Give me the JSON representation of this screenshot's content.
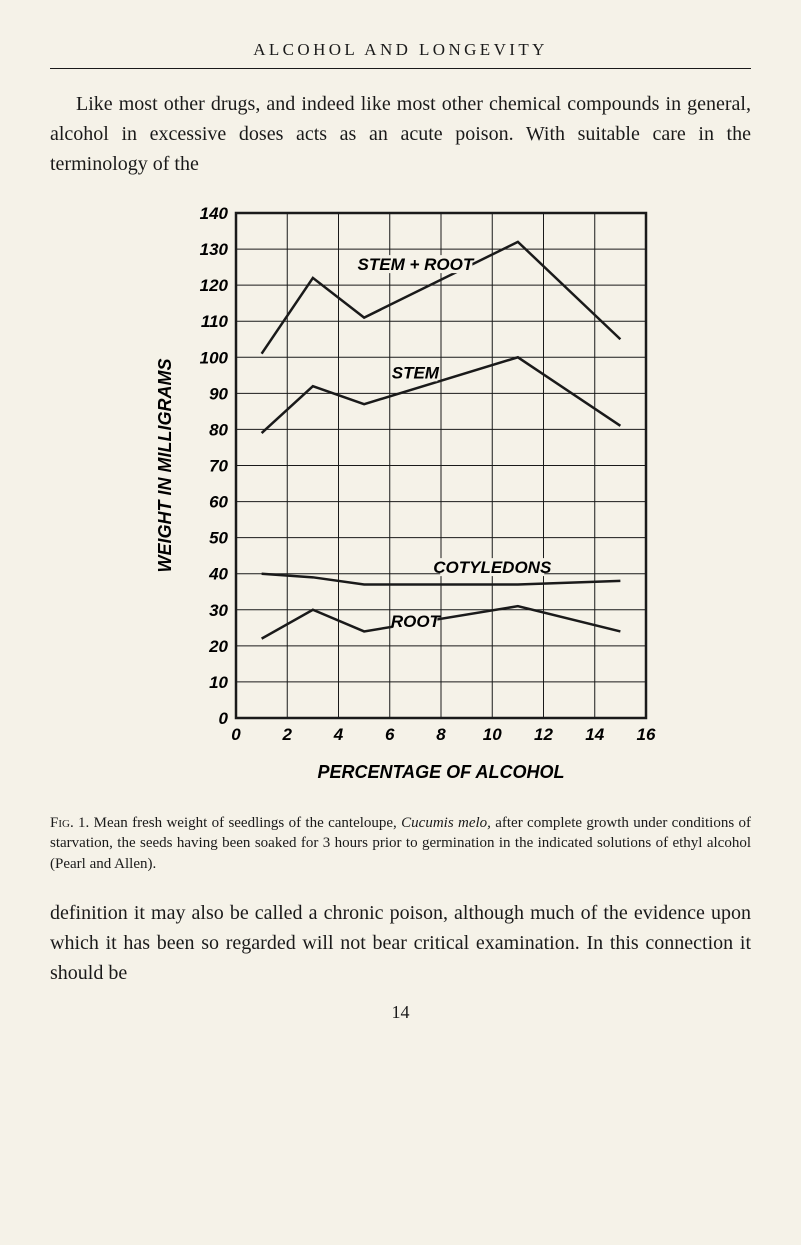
{
  "header": {
    "title": "ALCOHOL AND LONGEVITY"
  },
  "paragraph1": "Like most other drugs, and indeed like most other chemical compounds in general, alcohol in excessive doses acts as an acute poison. With suitable care in the terminology of the",
  "paragraph2": "definition it may also be called a chronic poison, although much of the evidence upon which it has been so regarded will not bear critical examination. In this connection it should be",
  "caption": {
    "fig_label": "Fig. 1.",
    "text": "Mean fresh weight of seedlings of the canteloupe, ",
    "italic_species": "Cucumis melo,",
    "text_after": " after complete growth under conditions of starvation, the seeds having been soaked for 3 hours prior to germination in the indicated solutions of ethyl alcohol (Pearl and Allen)."
  },
  "page_number": "14",
  "chart": {
    "type": "line",
    "xlabel": "PERCENTAGE OF ALCOHOL",
    "ylabel": "WEIGHT IN MILLIGRAMS",
    "xlim": [
      0,
      16
    ],
    "ylim": [
      0,
      140
    ],
    "xtick_step": 2,
    "ytick_step": 10,
    "xticks": [
      0,
      2,
      4,
      6,
      8,
      10,
      12,
      14,
      16
    ],
    "yticks": [
      0,
      10,
      20,
      30,
      40,
      50,
      60,
      70,
      80,
      90,
      100,
      110,
      120,
      130,
      140
    ],
    "ytick_labels": [
      "0",
      "10",
      "20",
      "30",
      "40",
      "50",
      "60",
      "70",
      "80",
      "90",
      "100",
      "110",
      "120",
      "130",
      "140"
    ],
    "xtick_labels": [
      "0",
      "2",
      "4",
      "6",
      "8",
      "10",
      "12",
      "14",
      "16"
    ],
    "background_color": "#f5f2e8",
    "line_color": "#1a1a1a",
    "line_width": 2.5,
    "border_width": 2.5,
    "grid_color": "#1a1a1a",
    "grid_width": 1,
    "series": {
      "stem_plus_root": {
        "label": "STEM + ROOT",
        "label_pos": {
          "x": 7,
          "y": 125
        },
        "x": [
          1,
          3,
          5,
          11,
          15
        ],
        "y": [
          101,
          122,
          111,
          132,
          105
        ]
      },
      "stem": {
        "label": "STEM",
        "label_pos": {
          "x": 7,
          "y": 95
        },
        "x": [
          1,
          3,
          5,
          11,
          15
        ],
        "y": [
          79,
          92,
          87,
          100,
          81
        ]
      },
      "cotyledons": {
        "label": "COTYLEDONS",
        "label_pos": {
          "x": 10,
          "y": 41
        },
        "x": [
          1,
          3,
          5,
          11,
          15
        ],
        "y": [
          40,
          39,
          37,
          37,
          38
        ]
      },
      "root": {
        "label": "ROOT",
        "label_pos": {
          "x": 7,
          "y": 26
        },
        "x": [
          1,
          3,
          5,
          11,
          15
        ],
        "y": [
          22,
          30,
          24,
          31,
          24
        ]
      }
    }
  }
}
